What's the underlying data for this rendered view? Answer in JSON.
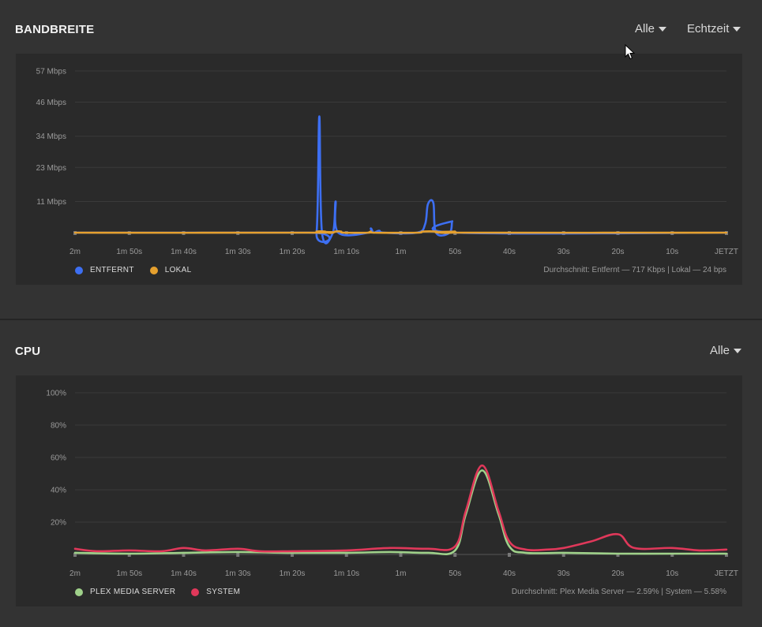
{
  "bandwidth": {
    "title": "BANDBREITE",
    "filter_label": "Alle",
    "range_label": "Echtzeit",
    "legend": [
      {
        "label": "ENTFERNT",
        "color": "#3d6ff2"
      },
      {
        "label": "LOKAL",
        "color": "#e5a02e"
      }
    ],
    "average_text": "Durchschnitt: Entfernt — 717 Kbps | Lokal — 24 bps"
  },
  "cpu": {
    "title": "CPU",
    "filter_label": "Alle",
    "legend": [
      {
        "label": "PLEX MEDIA SERVER",
        "color": "#9fd18a"
      },
      {
        "label": "SYSTEM",
        "color": "#e0385a"
      }
    ],
    "average_text": "Durchschnitt: Plex Media Server — 2.59% | System — 5.58%"
  },
  "chart_data": [
    {
      "type": "area",
      "ylabel_ticks": [
        "57 Mbps",
        "46 Mbps",
        "34 Mbps",
        "23 Mbps",
        "11 Mbps"
      ],
      "ytick_values": [
        57,
        46,
        34,
        23,
        11
      ],
      "ylim": [
        0,
        57
      ],
      "x_tick_labels": [
        "2m",
        "1m 50s",
        "1m 40s",
        "1m 30s",
        "1m 20s",
        "1m 10s",
        "1m",
        "50s",
        "40s",
        "30s",
        "20s",
        "10s",
        "JETZT"
      ],
      "x_seconds_ago": [
        120,
        110,
        100,
        90,
        80,
        70,
        60,
        50,
        40,
        30,
        20,
        10,
        0
      ],
      "grid": true,
      "series": [
        {
          "name": "ENTFERNT",
          "color": "#3d6ff2",
          "points": [
            [
              120,
              0
            ],
            [
              77,
              0
            ],
            [
              75.5,
              0
            ],
            [
              75,
              41
            ],
            [
              74.5,
              0
            ],
            [
              72.5,
              0
            ],
            [
              72,
              11
            ],
            [
              71.5,
              0
            ],
            [
              66,
              0
            ],
            [
              65.5,
              1.5
            ],
            [
              65,
              0
            ],
            [
              64,
              0.7
            ],
            [
              63,
              0
            ],
            [
              57,
              0
            ],
            [
              55.5,
              3
            ],
            [
              55,
              10
            ],
            [
              54,
              10.5
            ],
            [
              53.5,
              0
            ],
            [
              51,
              0
            ],
            [
              50.5,
              4
            ],
            [
              50,
              0
            ],
            [
              0,
              0
            ]
          ]
        },
        {
          "name": "LOKAL",
          "color": "#e5a02e",
          "points": [
            [
              120,
              0
            ],
            [
              76,
              0
            ],
            [
              75.5,
              0.4
            ],
            [
              74,
              0.4
            ],
            [
              73.5,
              0
            ],
            [
              72.5,
              0
            ],
            [
              72,
              0.4
            ],
            [
              71,
              0.4
            ],
            [
              70.5,
              0
            ],
            [
              66,
              0
            ],
            [
              65.5,
              0.4
            ],
            [
              65,
              0
            ],
            [
              57,
              0
            ],
            [
              56,
              0.4
            ],
            [
              53.5,
              0.4
            ],
            [
              53,
              0
            ],
            [
              50.5,
              0
            ],
            [
              50,
              0.4
            ],
            [
              49.5,
              0
            ],
            [
              0,
              0
            ]
          ]
        }
      ]
    },
    {
      "type": "line",
      "ylabel_ticks": [
        "100%",
        "80%",
        "60%",
        "40%",
        "20%"
      ],
      "ytick_values": [
        100,
        80,
        60,
        40,
        20
      ],
      "ylim": [
        0,
        100
      ],
      "x_tick_labels": [
        "2m",
        "1m 50s",
        "1m 40s",
        "1m 30s",
        "1m 20s",
        "1m 10s",
        "1m",
        "50s",
        "40s",
        "30s",
        "20s",
        "10s",
        "JETZT"
      ],
      "x_seconds_ago": [
        120,
        110,
        100,
        90,
        80,
        70,
        60,
        50,
        40,
        30,
        20,
        10,
        0
      ],
      "grid": true,
      "series": [
        {
          "name": "PLEX MEDIA SERVER",
          "color": "#9fd18a",
          "points": [
            [
              120,
              1
            ],
            [
              110,
              0.5
            ],
            [
              100,
              1
            ],
            [
              90,
              1.5
            ],
            [
              80,
              1
            ],
            [
              70,
              1
            ],
            [
              62,
              1.5
            ],
            [
              55,
              1
            ],
            [
              50,
              2.5
            ],
            [
              48,
              25
            ],
            [
              45,
              52
            ],
            [
              42,
              25
            ],
            [
              40,
              5
            ],
            [
              37,
              1
            ],
            [
              30,
              1
            ],
            [
              20,
              0.5
            ],
            [
              10,
              0.5
            ],
            [
              0,
              0.5
            ]
          ]
        },
        {
          "name": "SYSTEM",
          "color": "#e0385a",
          "points": [
            [
              120,
              3.5
            ],
            [
              116,
              2
            ],
            [
              110,
              2.5
            ],
            [
              104,
              2
            ],
            [
              100,
              4
            ],
            [
              96,
              2.5
            ],
            [
              90,
              3.5
            ],
            [
              86,
              2
            ],
            [
              80,
              2
            ],
            [
              70,
              2.5
            ],
            [
              62,
              4
            ],
            [
              55,
              3.5
            ],
            [
              50,
              5
            ],
            [
              48,
              27
            ],
            [
              45,
              55
            ],
            [
              42,
              27
            ],
            [
              40,
              8
            ],
            [
              37,
              3
            ],
            [
              33,
              3
            ],
            [
              30,
              4
            ],
            [
              25,
              8
            ],
            [
              20,
              12.5
            ],
            [
              17,
              4
            ],
            [
              10,
              4
            ],
            [
              5,
              2.5
            ],
            [
              0,
              3
            ]
          ]
        }
      ]
    }
  ]
}
